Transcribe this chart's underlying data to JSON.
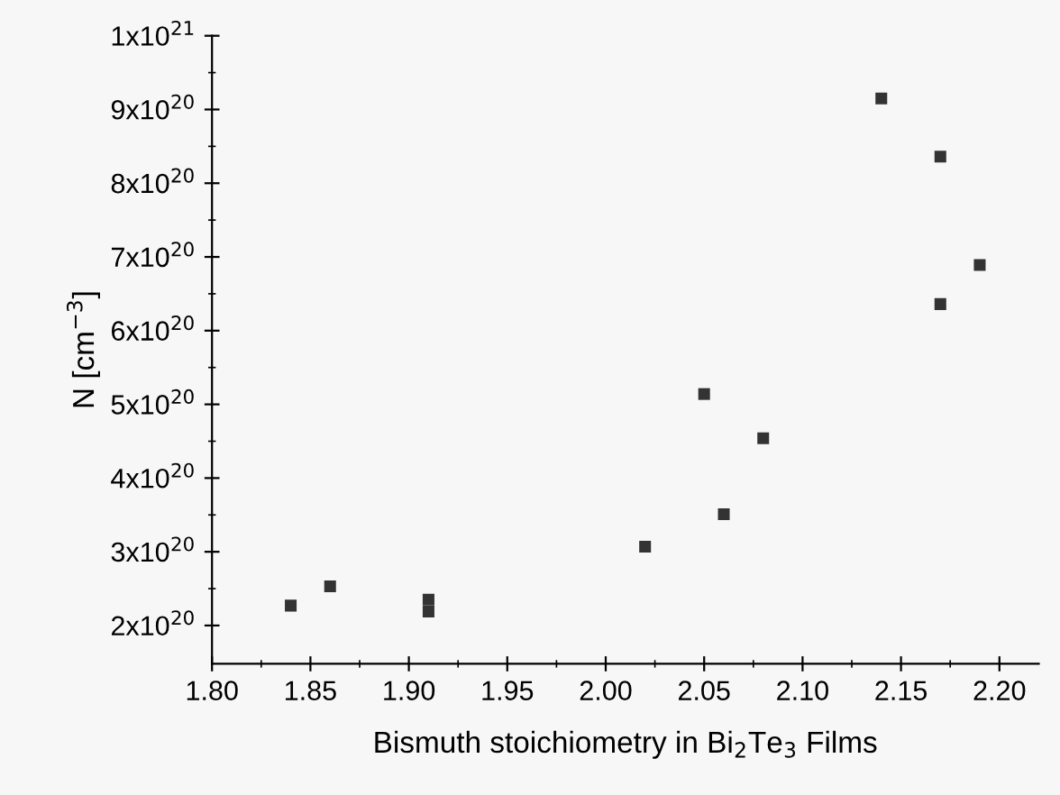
{
  "chart_data": {
    "type": "scatter",
    "xlabel": "Bismuth stoichiometry in Bi$_{2}$Te$_{3}$ Films",
    "ylabel": "N [cm$^{−3}$]",
    "x": [
      1.84,
      1.86,
      1.91,
      1.91,
      2.02,
      2.05,
      2.06,
      2.08,
      2.14,
      2.17,
      2.17,
      2.19
    ],
    "values": [
      2.27e+20,
      2.53e+20,
      2.35e+20,
      2.19e+20,
      3.07e+20,
      5.14e+20,
      3.51e+20,
      4.54e+20,
      9.15e+20,
      8.36e+20,
      6.36e+20,
      6.89e+20
    ],
    "color": "#333333",
    "marker": "square",
    "xlim": [
      1.8,
      2.22
    ],
    "ylim": [
      1.48e+20,
      1e+21
    ],
    "xticks": [
      {
        "value": 1.8,
        "label": "1.80"
      },
      {
        "value": 1.85,
        "label": "1.85"
      },
      {
        "value": 1.9,
        "label": "1.90"
      },
      {
        "value": 1.95,
        "label": "1.95"
      },
      {
        "value": 2.0,
        "label": "2.00"
      },
      {
        "value": 2.05,
        "label": "2.05"
      },
      {
        "value": 2.1,
        "label": "2.10"
      },
      {
        "value": 2.15,
        "label": "2.15"
      },
      {
        "value": 2.2,
        "label": "2.20"
      }
    ],
    "yticks": [
      {
        "value": 2e+20,
        "label": "2x10$^{20}$"
      },
      {
        "value": 3e+20,
        "label": "3x10$^{20}$"
      },
      {
        "value": 4e+20,
        "label": "4x10$^{20}$"
      },
      {
        "value": 5e+20,
        "label": "5x10$^{20}$"
      },
      {
        "value": 6e+20,
        "label": "6x10$^{20}$"
      },
      {
        "value": 7e+20,
        "label": "7x10$^{20}$"
      },
      {
        "value": 8e+20,
        "label": "8x10$^{20}$"
      },
      {
        "value": 9e+20,
        "label": "9x10$^{20}$"
      },
      {
        "value": 1e+21,
        "label": "1x10$^{21}$"
      }
    ],
    "grid": false,
    "legend": false
  }
}
